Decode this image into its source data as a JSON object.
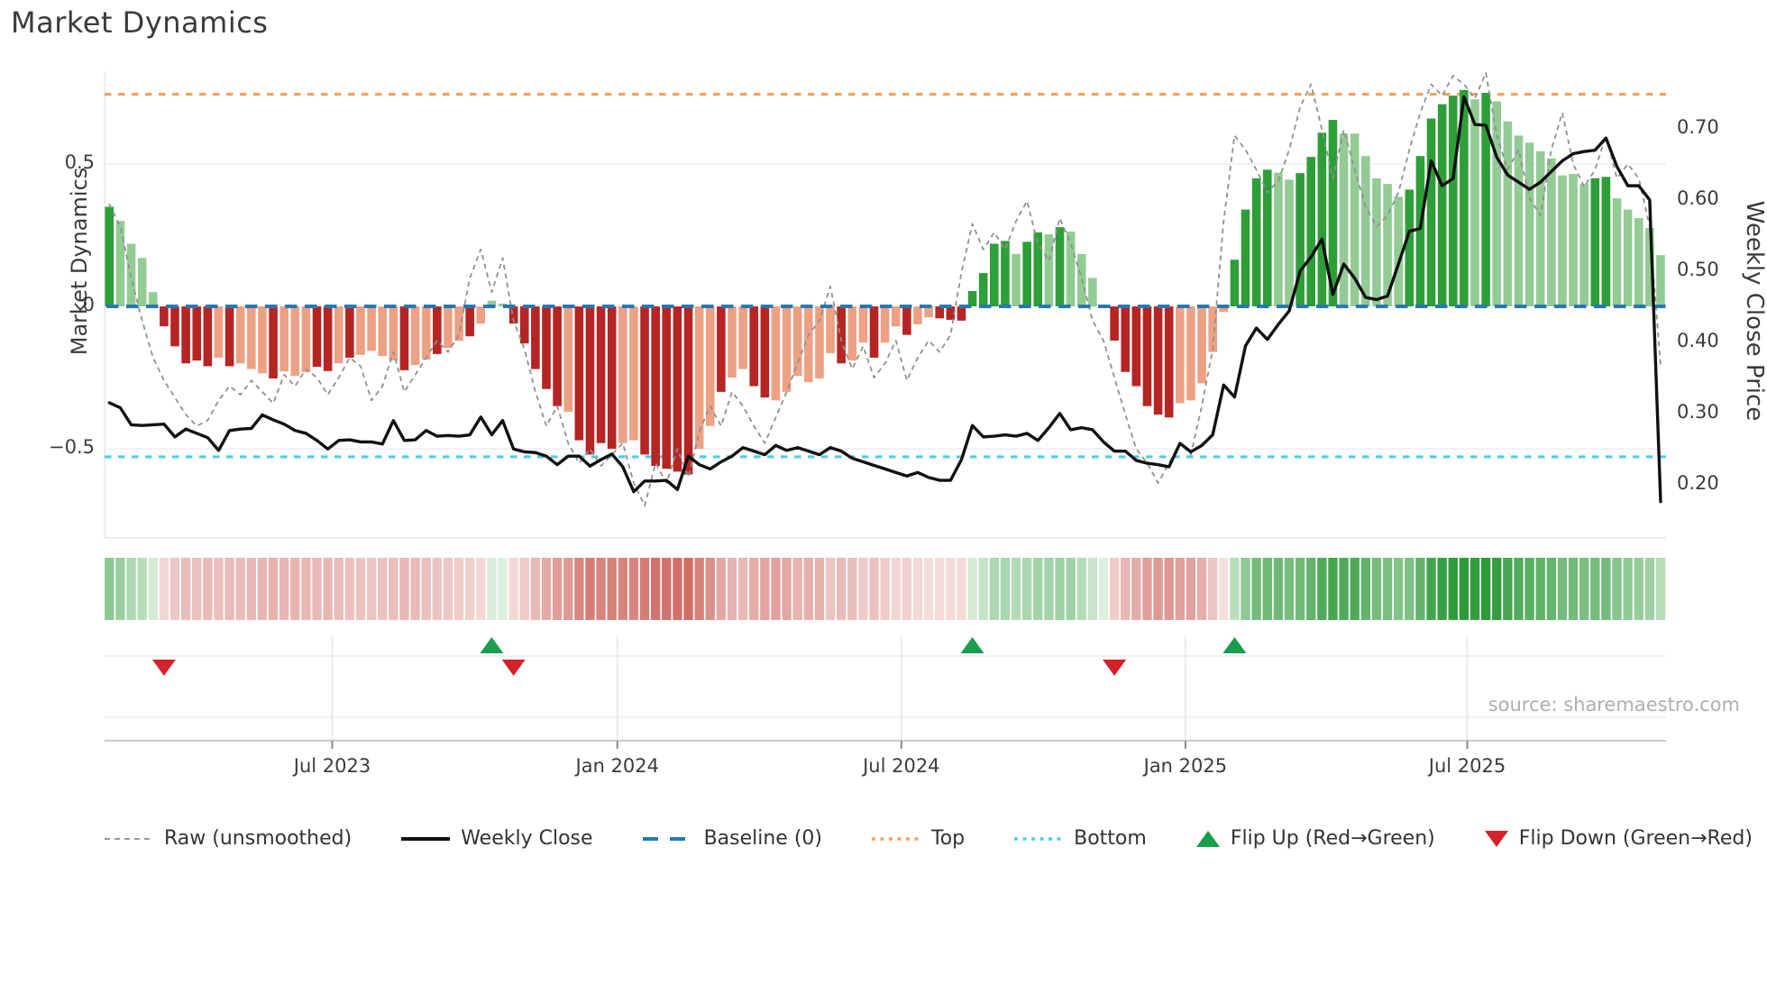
{
  "title": "Market Dynamics",
  "source": "source: sharemaestro.com",
  "axes": {
    "left_label": "Market Dynamics",
    "right_label": "Weekly Close Price",
    "left_ticks": [
      {
        "label": "0.5",
        "value": 0.5
      },
      {
        "label": "0",
        "value": 0
      },
      {
        "label": "−0.5",
        "value": -0.5
      }
    ],
    "right_ticks": [
      {
        "label": "0.70",
        "value": 0.7
      },
      {
        "label": "0.60",
        "value": 0.6
      },
      {
        "label": "0.50",
        "value": 0.5
      },
      {
        "label": "0.40",
        "value": 0.4
      },
      {
        "label": "0.30",
        "value": 0.3
      },
      {
        "label": "0.20",
        "value": 0.2
      }
    ],
    "x_ticks": [
      {
        "label": "Jul 2023",
        "week": 20.4
      },
      {
        "label": "Jan 2024",
        "week": 46.5
      },
      {
        "label": "Jul 2024",
        "week": 72.5
      },
      {
        "label": "Jan 2025",
        "week": 98.5
      },
      {
        "label": "Jul 2025",
        "week": 124.3
      }
    ]
  },
  "legend": {
    "items": [
      {
        "label": "Raw (unsmoothed)",
        "swatch": "dashed-gray-line"
      },
      {
        "label": "Weekly Close",
        "swatch": "solid-black-line"
      },
      {
        "label": "Baseline (0)",
        "swatch": "blue-dashes"
      },
      {
        "label": "Top",
        "swatch": "orange-dots"
      },
      {
        "label": "Bottom",
        "swatch": "cyan-dots"
      },
      {
        "label": "Flip Up (Red→Green)",
        "swatch": "green-up-triangle"
      },
      {
        "label": "Flip Down (Green→Red)",
        "swatch": "red-down-triangle"
      }
    ]
  },
  "colors": {
    "bar_green_strong": "#2e9e38",
    "bar_green_soft": "#93cb95",
    "bar_red_strong": "#b42524",
    "bar_red_soft": "#eda184",
    "line_close": "#111111",
    "line_raw": "#909090",
    "baseline": "#2679b2",
    "top_line": "#f3a45f",
    "bottom_line": "#48cfee",
    "flip_up": "#189e4d",
    "flip_down": "#d3222a",
    "heat_green": "#2e9a3a",
    "heat_red": "#c64e46",
    "grid": "#ededf2",
    "panel_axis": "#c9c9c9"
  },
  "chart_data": {
    "type": "bar+line",
    "title": "Market Dynamics",
    "ylabel_left": "Market Dynamics",
    "ylabel_right": "Weekly Close Price",
    "ylim_left": [
      -0.813,
      0.826
    ],
    "ylim_right": [
      0.125,
      0.781
    ],
    "weeks": 143,
    "baseline": 0,
    "top_threshold": 0.745,
    "bottom_threshold": -0.528,
    "oscillator_values": [
      0.35,
      0.3,
      0.22,
      0.17,
      0.05,
      -0.07,
      -0.14,
      -0.2,
      -0.19,
      -0.21,
      -0.18,
      -0.21,
      -0.2,
      -0.22,
      -0.235,
      -0.253,
      -0.228,
      -0.244,
      -0.231,
      -0.212,
      -0.227,
      -0.2,
      -0.18,
      -0.17,
      -0.156,
      -0.174,
      -0.19,
      -0.224,
      -0.206,
      -0.187,
      -0.167,
      -0.146,
      -0.121,
      -0.105,
      -0.06,
      0.02,
      0.01,
      -0.06,
      -0.13,
      -0.22,
      -0.29,
      -0.35,
      -0.37,
      -0.47,
      -0.52,
      -0.48,
      -0.5,
      -0.48,
      -0.47,
      -0.52,
      -0.56,
      -0.57,
      -0.58,
      -0.59,
      -0.5,
      -0.42,
      -0.3,
      -0.25,
      -0.22,
      -0.28,
      -0.32,
      -0.33,
      -0.3,
      -0.244,
      -0.266,
      -0.253,
      -0.164,
      -0.2,
      -0.19,
      -0.127,
      -0.18,
      -0.127,
      -0.07,
      -0.1,
      -0.063,
      -0.038,
      -0.042,
      -0.047,
      -0.05,
      0.054,
      0.117,
      0.22,
      0.23,
      0.184,
      0.227,
      0.26,
      0.253,
      0.278,
      0.263,
      0.184,
      0.1,
      0.005,
      -0.12,
      -0.23,
      -0.28,
      -0.35,
      -0.38,
      -0.39,
      -0.34,
      -0.33,
      -0.27,
      -0.16,
      -0.02,
      0.164,
      0.34,
      0.45,
      0.48,
      0.47,
      0.445,
      0.468,
      0.525,
      0.61,
      0.655,
      0.607,
      0.607,
      0.528,
      0.45,
      0.43,
      0.385,
      0.41,
      0.528,
      0.66,
      0.71,
      0.74,
      0.76,
      0.727,
      0.75,
      0.72,
      0.65,
      0.6,
      0.575,
      0.545,
      0.52,
      0.46,
      0.465,
      0.43,
      0.45,
      0.455,
      0.38,
      0.34,
      0.31,
      0.275,
      0.18
    ],
    "oscillator_shade_groups": [
      "dllll",
      "ddddd",
      "ldlll",
      "dllld",
      "dldll",
      "lldll",
      "dlldl",
      "llddd",
      "ddldd",
      "ddlld",
      "ddddl",
      "ldlld",
      "dllll",
      "lldll",
      "dlldl",
      "ldddd",
      "dddld",
      "dldll",
      "llddd",
      "dddll",
      "llldd",
      "ddlld",
      "dddll",
      "lllld",
      "ddddd",
      "ldlll",
      "lllll",
      "lddll",
      "lll"
    ],
    "weekly_close": [
      0.315,
      0.308,
      0.284,
      0.283,
      0.284,
      0.285,
      0.267,
      0.278,
      0.272,
      0.266,
      0.248,
      0.276,
      0.278,
      0.279,
      0.298,
      0.291,
      0.285,
      0.276,
      0.272,
      0.262,
      0.25,
      0.262,
      0.263,
      0.26,
      0.26,
      0.257,
      0.29,
      0.262,
      0.263,
      0.276,
      0.268,
      0.269,
      0.268,
      0.27,
      0.295,
      0.27,
      0.29,
      0.25,
      0.246,
      0.245,
      0.24,
      0.228,
      0.24,
      0.24,
      0.226,
      0.235,
      0.243,
      0.225,
      0.19,
      0.205,
      0.205,
      0.206,
      0.193,
      0.24,
      0.228,
      0.222,
      0.232,
      0.24,
      0.252,
      0.247,
      0.242,
      0.255,
      0.248,
      0.252,
      0.247,
      0.242,
      0.252,
      0.247,
      0.237,
      0.232,
      0.227,
      0.222,
      0.217,
      0.212,
      0.217,
      0.21,
      0.206,
      0.206,
      0.235,
      0.283,
      0.267,
      0.268,
      0.27,
      0.268,
      0.272,
      0.262,
      0.28,
      0.3,
      0.277,
      0.28,
      0.277,
      0.26,
      0.247,
      0.247,
      0.234,
      0.23,
      0.228,
      0.225,
      0.258,
      0.246,
      0.255,
      0.27,
      0.34,
      0.323,
      0.395,
      0.42,
      0.404,
      0.425,
      0.444,
      0.5,
      0.52,
      0.545,
      0.467,
      0.51,
      0.49,
      0.463,
      0.46,
      0.465,
      0.51,
      0.556,
      0.56,
      0.655,
      0.62,
      0.63,
      0.745,
      0.706,
      0.705,
      0.66,
      0.635,
      0.625,
      0.615,
      0.625,
      0.64,
      0.655,
      0.665,
      0.668,
      0.67,
      0.687,
      0.647,
      0.62,
      0.62,
      0.6,
      0.176
    ],
    "raw_values": [
      0.36,
      0.28,
      0.1,
      -0.05,
      -0.18,
      -0.26,
      -0.32,
      -0.38,
      -0.42,
      -0.4,
      -0.33,
      -0.28,
      -0.31,
      -0.26,
      -0.3,
      -0.34,
      -0.24,
      -0.28,
      -0.22,
      -0.25,
      -0.31,
      -0.25,
      -0.18,
      -0.21,
      -0.33,
      -0.28,
      -0.16,
      -0.3,
      -0.24,
      -0.18,
      -0.12,
      -0.16,
      -0.1,
      0.1,
      0.2,
      0.05,
      0.17,
      -0.05,
      -0.15,
      -0.3,
      -0.42,
      -0.35,
      -0.48,
      -0.55,
      -0.5,
      -0.56,
      -0.52,
      -0.48,
      -0.62,
      -0.7,
      -0.55,
      -0.62,
      -0.5,
      -0.6,
      -0.44,
      -0.35,
      -0.42,
      -0.3,
      -0.35,
      -0.42,
      -0.48,
      -0.39,
      -0.3,
      -0.2,
      -0.1,
      -0.05,
      0.07,
      -0.12,
      -0.22,
      -0.14,
      -0.25,
      -0.2,
      -0.12,
      -0.26,
      -0.18,
      -0.12,
      -0.16,
      -0.1,
      0.12,
      0.29,
      0.2,
      0.26,
      0.2,
      0.3,
      0.37,
      0.22,
      0.16,
      0.31,
      0.22,
      0.1,
      -0.05,
      -0.12,
      -0.25,
      -0.38,
      -0.5,
      -0.55,
      -0.62,
      -0.55,
      -0.48,
      -0.52,
      -0.35,
      -0.15,
      0.3,
      0.6,
      0.55,
      0.48,
      0.4,
      0.44,
      0.55,
      0.7,
      0.78,
      0.62,
      0.45,
      0.62,
      0.48,
      0.35,
      0.28,
      0.32,
      0.4,
      0.55,
      0.68,
      0.78,
      0.74,
      0.81,
      0.78,
      0.73,
      0.82,
      0.6,
      0.48,
      0.55,
      0.38,
      0.32,
      0.55,
      0.68,
      0.5,
      0.42,
      0.48,
      0.6,
      0.45,
      0.5,
      0.45,
      0.28,
      -0.21
    ],
    "flip_up_weeks": [
      35,
      79,
      103
    ],
    "flip_down_weeks": [
      5,
      37,
      92
    ],
    "heatmap": "derived: green/red intensity proportional to oscillator value",
    "legend_position": "bottom",
    "grid": "horizontal only (0.5, 0, -0.5)"
  }
}
